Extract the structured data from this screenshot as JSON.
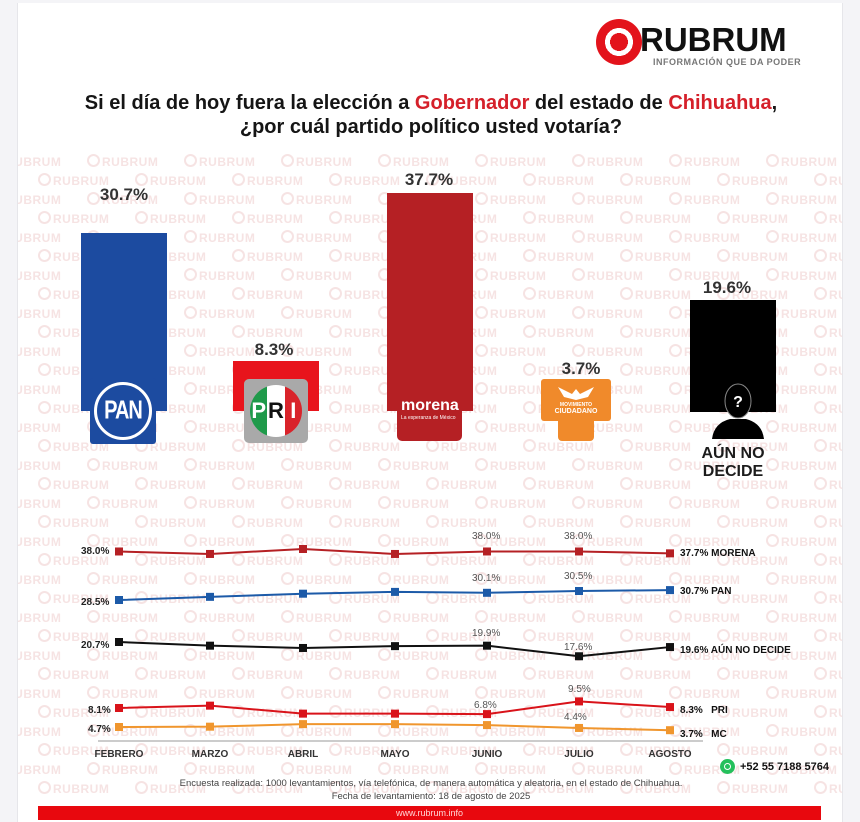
{
  "brand": {
    "name": "RUBRUM",
    "tagline": "INFORMACIÓN QUE DA PODER",
    "accent": "#e3131b",
    "watermark_text": "RUBRUM"
  },
  "title": {
    "line1_part1": "Si el día de hoy fuera la elección a ",
    "line1_highlight1": "Gobernador",
    "line1_part2": " del estado de ",
    "line1_highlight2": "Chihuahua",
    "line1_part3": ",",
    "line2": "¿por cuál partido político usted votaría?"
  },
  "bars": [
    {
      "party": "PAN",
      "value_label": "30.7%",
      "color": "#1c4ba0",
      "logo_text": "PAN"
    },
    {
      "party": "PRI",
      "value_label": "8.3%",
      "color": "#e8141c",
      "logo_text": [
        "P",
        "R",
        "I"
      ]
    },
    {
      "party": "MORENA",
      "value_label": "37.7%",
      "color": "#b52024",
      "logo_text": "morena",
      "logo_sub": "La esperanza de México"
    },
    {
      "party": "MC",
      "value_label": "3.7%",
      "color": "#f08a2b",
      "logo_text1": "MOVIMIENTO",
      "logo_text2": "CIUDADANO"
    },
    {
      "party": "AÚN NO DECIDE",
      "value_label": "19.6%",
      "color": "#000000",
      "label_line1": "AÚN NO",
      "label_line2": "DECIDE",
      "icon": "question-silhouette-icon"
    }
  ],
  "line_chart": {
    "months": [
      "FEBRERO",
      "MARZO",
      "ABRIL",
      "MAYO",
      "JUNIO",
      "JULIO",
      "AGOSTO"
    ],
    "start_labels": {
      "morena": "38.0%",
      "pan": "28.5%",
      "undecided": "20.7%",
      "pri": "8.1%",
      "mc": "4.7%"
    },
    "point_labels": {
      "morena_junio": "38.0%",
      "morena_julio": "38.0%",
      "pan_junio": "30.1%",
      "pan_julio": "30.5%",
      "undecided_junio": "19.9%",
      "undecided_julio": "17.6%",
      "pri_junio": "6.8%",
      "pri_julio": "9.5%",
      "mc_julio": "4.4%"
    },
    "end_labels": {
      "morena": "37.7% MORENA",
      "pan": "30.7% PAN",
      "undecided": "19.6% AÚN NO DECIDE",
      "pri_value": "8.3%",
      "pri_name": "PRI",
      "mc_value": "3.7%",
      "mc_name": "MC"
    }
  },
  "chart_data": [
    {
      "type": "bar",
      "title": "Si el día de hoy fuera la elección a Gobernador del estado de Chihuahua, ¿por cuál partido político usted votaría?",
      "categories": [
        "PAN",
        "PRI",
        "MORENA",
        "MC",
        "AÚN NO DECIDE"
      ],
      "values": [
        30.7,
        8.3,
        37.7,
        3.7,
        19.6
      ],
      "colors": [
        "#1c4ba0",
        "#e8141c",
        "#b52024",
        "#f08a2b",
        "#000000"
      ],
      "xlabel": "",
      "ylabel": "%",
      "ylim": [
        0,
        40
      ],
      "grid": false
    },
    {
      "type": "line",
      "title": "Tendencia mensual",
      "categories": [
        "FEBRERO",
        "MARZO",
        "ABRIL",
        "MAYO",
        "JUNIO",
        "JULIO",
        "AGOSTO"
      ],
      "series": [
        {
          "name": "MORENA",
          "color": "#b52024",
          "values": [
            38.0,
            37.6,
            38.4,
            37.6,
            38.0,
            38.0,
            37.7
          ]
        },
        {
          "name": "PAN",
          "color": "#1c5aa8",
          "values": [
            28.5,
            29.2,
            29.9,
            30.3,
            30.1,
            30.5,
            30.7
          ]
        },
        {
          "name": "AÚN NO DECIDE",
          "color": "#111111",
          "values": [
            20.7,
            19.9,
            19.4,
            19.8,
            19.9,
            17.6,
            19.6
          ]
        },
        {
          "name": "PRI",
          "color": "#d9131a",
          "values": [
            8.1,
            8.6,
            6.9,
            6.9,
            6.8,
            9.5,
            8.3
          ]
        },
        {
          "name": "MC",
          "color": "#f0962e",
          "values": [
            4.7,
            4.8,
            5.6,
            5.6,
            5.3,
            4.4,
            3.7
          ]
        }
      ],
      "legend_position": "right-end-labels",
      "grid": false
    }
  ],
  "contact": {
    "phone": "+52 55 7188 5764",
    "icon": "whatsapp-icon"
  },
  "footnote": {
    "line1": "Encuesta realizada: 1000 levantamientos, vía telefónica, de manera automática y aleatoria, en el estado de Chihuahua.",
    "line2": "Fecha de levantamiento: 18 de agosto de 2025"
  },
  "footer": {
    "url": "www.rubrum.info"
  }
}
